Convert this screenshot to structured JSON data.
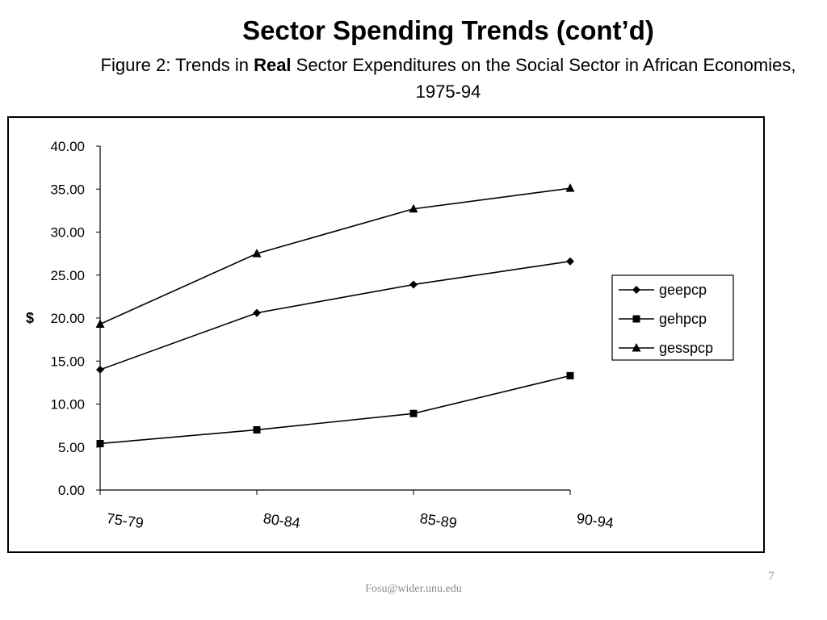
{
  "slide": {
    "title": "Sector Spending Trends (cont’d)",
    "subtitle_before": "Figure 2: Trends in ",
    "subtitle_bold": "Real",
    "subtitle_after": " Sector Expenditures on the Social Sector in African Economies, 1975-94",
    "footer_email": "Fosu@wider.unu.edu",
    "page_number": "7"
  },
  "chart_data": {
    "type": "line",
    "title": "",
    "xlabel": "",
    "ylabel": "$",
    "categories": [
      "75-79",
      "80-84",
      "85-89",
      "90-94"
    ],
    "ylim": [
      0,
      40
    ],
    "yticks": [
      "0.00",
      "5.00",
      "10.00",
      "15.00",
      "20.00",
      "25.00",
      "30.00",
      "35.00",
      "40.00"
    ],
    "grid": false,
    "legend_position": "right",
    "series": [
      {
        "name": "geepcp",
        "marker": "diamond",
        "values": [
          14.0,
          20.6,
          23.9,
          26.6
        ]
      },
      {
        "name": "gehpcp",
        "marker": "square",
        "values": [
          5.4,
          7.0,
          8.9,
          13.3
        ]
      },
      {
        "name": "gesspcp",
        "marker": "triangle",
        "values": [
          19.3,
          27.5,
          32.7,
          35.1
        ]
      }
    ],
    "line_color": "#000000"
  }
}
